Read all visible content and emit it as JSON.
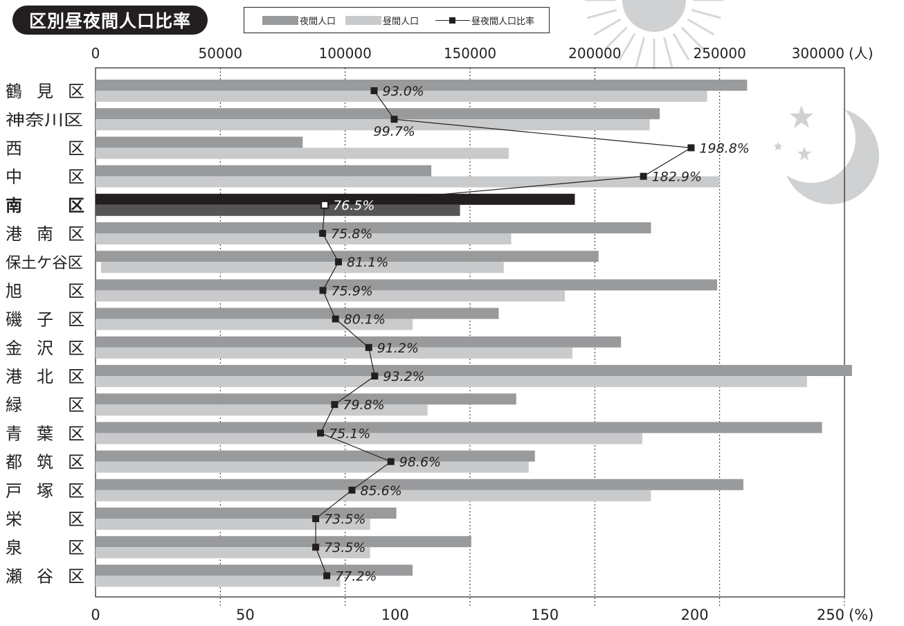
{
  "title": "区別昼夜間人口比率",
  "legend": {
    "night": "夜間人口",
    "day": "昼間人口",
    "ratio": "昼夜間人口比率"
  },
  "colors": {
    "night": "#999a9c",
    "day": "#c9cacb",
    "highlight_night": "#231f20",
    "highlight_day": "#555556",
    "ratio_line": "#231f20"
  },
  "chart_data": {
    "type": "bar",
    "orientation": "horizontal",
    "title": "区別昼夜間人口比率",
    "categories": [
      "鶴 見 区",
      "神奈川区",
      "西　　区",
      "中　　区",
      "南　　区",
      "港 南 区",
      "保土ケ谷区",
      "旭　　区",
      "磯 子 区",
      "金 沢 区",
      "港 北 区",
      "緑　　区",
      "青 葉 区",
      "都 筑 区",
      "戸 塚 区",
      "栄　　区",
      "泉　　区",
      "瀬 谷 区"
    ],
    "highlight_category": "南　　区",
    "series": [
      {
        "name": "夜間人口",
        "axis": "top",
        "values": [
          261000,
          226000,
          83000,
          134500,
          192000,
          222500,
          201500,
          249000,
          161500,
          210500,
          303000,
          168500,
          291000,
          176000,
          259500,
          120500,
          150500,
          127000
        ]
      },
      {
        "name": "昼間人口",
        "axis": "top",
        "values": [
          245000,
          222000,
          165500,
          250000,
          146000,
          166500,
          163500,
          188000,
          127000,
          191000,
          285000,
          133000,
          219000,
          173500,
          222500,
          110000,
          110000,
          98000
        ]
      },
      {
        "name": "昼夜間人口比率",
        "axis": "bottom",
        "type": "line",
        "values": [
          93.0,
          99.7,
          198.8,
          182.9,
          76.5,
          75.8,
          81.1,
          75.9,
          80.1,
          91.2,
          93.2,
          79.8,
          75.1,
          98.6,
          85.6,
          73.5,
          73.5,
          77.2
        ]
      }
    ],
    "ratio_labels": [
      "93.0%",
      "99.7%",
      "198.8%",
      "182.9%",
      "76.5%",
      "75.8%",
      "81.1%",
      "75.9%",
      "80.1%",
      "91.2%",
      "93.2%",
      "79.8%",
      "75.1%",
      "98.6%",
      "85.6%",
      "73.5%",
      "73.5%",
      "77.2%"
    ],
    "top_axis": {
      "ticks": [
        0,
        50000,
        100000,
        150000,
        200000,
        250000,
        300000
      ],
      "tick_labels": [
        "0",
        "50000",
        "100000",
        "150000",
        "200000",
        "250000",
        "300000"
      ],
      "unit": "(人)",
      "range": [
        0,
        300000
      ]
    },
    "bottom_axis": {
      "ticks": [
        0,
        50,
        100,
        150,
        200,
        250
      ],
      "tick_labels": [
        "0",
        "50",
        "100",
        "150",
        "200",
        "250"
      ],
      "unit": "(%)",
      "range": [
        0,
        250
      ]
    },
    "gridlines": [
      50000,
      100000,
      150000,
      200000,
      250000,
      300000
    ],
    "grid": "dotted vertical"
  }
}
